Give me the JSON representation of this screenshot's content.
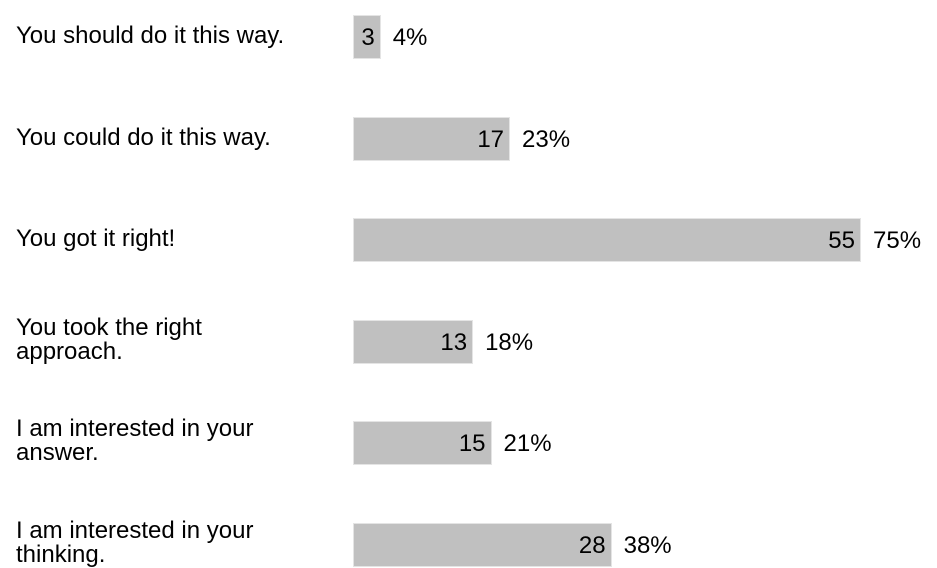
{
  "chart_data": {
    "type": "bar",
    "orientation": "horizontal",
    "categories": [
      "You should do it this way.",
      "You could do it this way.",
      "You got it right!",
      "You took the right\napproach.",
      "I am interested in your\nanswer.",
      "I am interested in your\nthinking."
    ],
    "values": [
      3,
      17,
      55,
      13,
      15,
      28
    ],
    "percent_labels": [
      "4%",
      "23%",
      "75%",
      "18%",
      "21%",
      "38%"
    ],
    "bar_color": "#c0c0c0",
    "grid": false,
    "legend": "none"
  }
}
